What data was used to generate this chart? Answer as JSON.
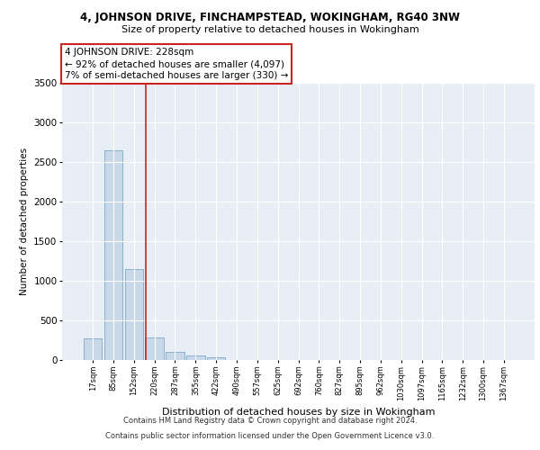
{
  "title1": "4, JOHNSON DRIVE, FINCHAMPSTEAD, WOKINGHAM, RG40 3NW",
  "title2": "Size of property relative to detached houses in Wokingham",
  "xlabel": "Distribution of detached houses by size in Wokingham",
  "ylabel": "Number of detached properties",
  "bar_color": "#c8d8e8",
  "bar_edge_color": "#7ba7c7",
  "vline_color": "#cc2222",
  "annotation_text_line1": "4 JOHNSON DRIVE: 228sqm",
  "annotation_text_line2": "← 92% of detached houses are smaller (4,097)",
  "annotation_text_line3": "7% of semi-detached houses are larger (330) →",
  "annotation_box_facecolor": "#ffffff",
  "annotation_border_color": "#cc2222",
  "footnote1": "Contains HM Land Registry data © Crown copyright and database right 2024.",
  "footnote2": "Contains public sector information licensed under the Open Government Licence v3.0.",
  "categories": [
    "17sqm",
    "85sqm",
    "152sqm",
    "220sqm",
    "287sqm",
    "355sqm",
    "422sqm",
    "490sqm",
    "557sqm",
    "625sqm",
    "692sqm",
    "760sqm",
    "827sqm",
    "895sqm",
    "962sqm",
    "1030sqm",
    "1097sqm",
    "1165sqm",
    "1232sqm",
    "1300sqm",
    "1367sqm"
  ],
  "values": [
    270,
    2650,
    1150,
    290,
    100,
    55,
    35,
    0,
    0,
    0,
    0,
    0,
    0,
    0,
    0,
    0,
    0,
    0,
    0,
    0,
    0
  ],
  "ylim": [
    0,
    3500
  ],
  "yticks": [
    0,
    500,
    1000,
    1500,
    2000,
    2500,
    3000,
    3500
  ],
  "background_color": "#e8eef5",
  "grid_color": "#ffffff",
  "fig_background": "#ffffff",
  "vline_x_index": 2.56
}
